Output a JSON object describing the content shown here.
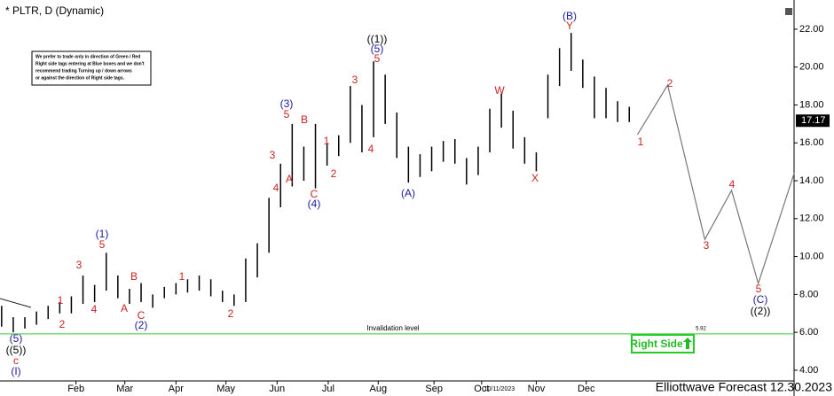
{
  "chart_data": {
    "type": "range",
    "title": "* PLTR, D (Dynamic)",
    "footer": "Elliottwave Forecast 12.30.2023",
    "note_lines": [
      "We prefer to trade only in direction of Green / Red",
      "Right side tags entering at Blue boxes and we don't",
      "recommend trading Turning up / down arrows",
      "or against the direction of Right side tags."
    ],
    "right_side_tag": "Right Side",
    "date_marker": "10/11/2023",
    "last_price": {
      "value": 17.17,
      "label": "17.17"
    },
    "invalidation": {
      "value": 5.92,
      "label": "5.92",
      "text": "Invalidation level",
      "color": "#33cc33"
    },
    "color": "#000000",
    "xlim": [
      -2.14,
      66.18
    ],
    "xticks": [
      {
        "value": 4.4,
        "label": "Feb"
      },
      {
        "value": 8.6,
        "label": "Mar"
      },
      {
        "value": 13.0,
        "label": "Apr"
      },
      {
        "value": 17.3,
        "label": "May"
      },
      {
        "value": 21.7,
        "label": "Jun"
      },
      {
        "value": 26.1,
        "label": "Jul"
      },
      {
        "value": 30.4,
        "label": "Aug"
      },
      {
        "value": 35.2,
        "label": "Sep"
      },
      {
        "value": 39.3,
        "label": "Oct"
      },
      {
        "value": 44.0,
        "label": "Nov"
      },
      {
        "value": 48.3,
        "label": "Dec"
      }
    ],
    "ylim": [
      2.64,
      23.54
    ],
    "yticks": [
      {
        "value": 4,
        "label": "4.00"
      },
      {
        "value": 6,
        "label": "6.00"
      },
      {
        "value": 8,
        "label": "8.00"
      },
      {
        "value": 10,
        "label": "10.00"
      },
      {
        "value": 12,
        "label": "12.00"
      },
      {
        "value": 14,
        "label": "14.00"
      },
      {
        "value": 16,
        "label": "16.00"
      },
      {
        "value": 18,
        "label": "18.00"
      },
      {
        "value": 20,
        "label": "20.00"
      },
      {
        "value": 22,
        "label": "22.00"
      }
    ],
    "x": [
      -2,
      -1,
      0,
      1,
      2,
      3,
      4,
      5,
      6,
      7,
      8,
      9,
      10,
      11,
      12,
      13,
      14,
      15,
      16,
      17,
      18,
      19,
      20,
      21,
      22,
      23,
      24,
      25,
      26,
      27,
      28,
      29,
      30,
      31,
      32,
      33,
      34,
      35,
      36,
      37,
      38,
      39,
      40,
      41,
      42,
      43,
      44,
      45,
      46,
      47,
      48,
      49,
      50,
      51,
      52
    ],
    "low": [
      6.3,
      6.0,
      6.2,
      6.4,
      6.7,
      7.0,
      7.0,
      7.5,
      7.6,
      8.2,
      7.8,
      7.5,
      7.6,
      7.3,
      7.8,
      8.0,
      8.1,
      8.2,
      7.9,
      7.6,
      7.4,
      7.6,
      8.9,
      10.2,
      12.6,
      13.7,
      14.0,
      13.6,
      14.8,
      15.3,
      16.0,
      15.5,
      16.3,
      17.0,
      15.2,
      13.9,
      14.2,
      14.5,
      15.0,
      14.9,
      13.8,
      14.3,
      15.5,
      16.8,
      15.7,
      14.9,
      14.5,
      17.3,
      19.0,
      19.8,
      18.9,
      17.3,
      17.3,
      17.1,
      17.1
    ],
    "high": [
      7.4,
      6.8,
      6.8,
      7.1,
      7.4,
      7.6,
      7.9,
      9.0,
      8.5,
      10.2,
      9.0,
      8.3,
      8.6,
      8.0,
      8.4,
      8.6,
      8.8,
      9.0,
      8.8,
      8.2,
      8.0,
      9.9,
      10.7,
      13.1,
      14.9,
      17.0,
      15.8,
      17.0,
      16.0,
      16.4,
      19.0,
      18.0,
      20.3,
      19.6,
      17.6,
      15.8,
      15.4,
      15.8,
      16.1,
      16.2,
      15.2,
      15.8,
      17.8,
      18.6,
      17.7,
      16.3,
      15.5,
      19.6,
      21.0,
      21.8,
      20.4,
      19.5,
      18.9,
      18.2,
      17.9
    ],
    "projection": {
      "color": "#777777",
      "x": [
        52.7,
        55.3,
        58.5,
        60.8,
        63.1,
        66.2
      ],
      "values": [
        16.43,
        19.05,
        10.9,
        13.49,
        8.58,
        14.42
      ]
    },
    "annotations": [
      {
        "text": "(5)",
        "color": "#1a1aa0"
      },
      {
        "text": "((5))",
        "color": "#000000"
      },
      {
        "text": "c",
        "color": "#cc2222"
      },
      {
        "text": "(I)",
        "color": "#1a1aa0"
      },
      {
        "text": "2",
        "color": "#cc2222"
      },
      {
        "text": "1",
        "color": "#cc2222"
      },
      {
        "text": "3",
        "color": "#cc2222"
      },
      {
        "text": "4",
        "color": "#cc2222"
      },
      {
        "text": "5",
        "color": "#cc2222"
      },
      {
        "text": "(1)",
        "color": "#1a1aa0"
      },
      {
        "text": "A",
        "color": "#cc2222"
      },
      {
        "text": "B",
        "color": "#cc2222"
      },
      {
        "text": "C",
        "color": "#cc2222"
      },
      {
        "text": "(2)",
        "color": "#1a1aa0"
      },
      {
        "text": "1",
        "color": "#cc2222"
      },
      {
        "text": "2",
        "color": "#cc2222"
      },
      {
        "text": "3",
        "color": "#cc2222"
      },
      {
        "text": "4",
        "color": "#cc2222"
      },
      {
        "text": "A",
        "color": "#cc2222"
      },
      {
        "text": "5",
        "color": "#cc2222"
      },
      {
        "text": "(3)",
        "color": "#1a1aa0"
      },
      {
        "text": "B",
        "color": "#cc2222"
      },
      {
        "text": "C",
        "color": "#cc2222"
      },
      {
        "text": "(4)",
        "color": "#1a1aa0"
      },
      {
        "text": "1",
        "color": "#cc2222"
      },
      {
        "text": "2",
        "color": "#cc2222"
      },
      {
        "text": "3",
        "color": "#cc2222"
      },
      {
        "text": "4",
        "color": "#cc2222"
      },
      {
        "text": "5",
        "color": "#cc2222"
      },
      {
        "text": "(5)",
        "color": "#1a1aa0"
      },
      {
        "text": "((1))",
        "color": "#000000"
      },
      {
        "text": "(A)",
        "color": "#1a1aa0"
      },
      {
        "text": "W",
        "color": "#cc2222"
      },
      {
        "text": "X",
        "color": "#cc2222"
      },
      {
        "text": "Y",
        "color": "#cc2222"
      },
      {
        "text": "(B)",
        "color": "#1a1aa0"
      },
      {
        "text": "1",
        "color": "#cc2222"
      },
      {
        "text": "2",
        "color": "#cc2222"
      },
      {
        "text": "3",
        "color": "#cc2222"
      },
      {
        "text": "4",
        "color": "#cc2222"
      },
      {
        "text": "5",
        "color": "#cc2222"
      },
      {
        "text": "(C)",
        "color": "#1a1aa0"
      },
      {
        "text": "((2))",
        "color": "#000000"
      }
    ]
  }
}
